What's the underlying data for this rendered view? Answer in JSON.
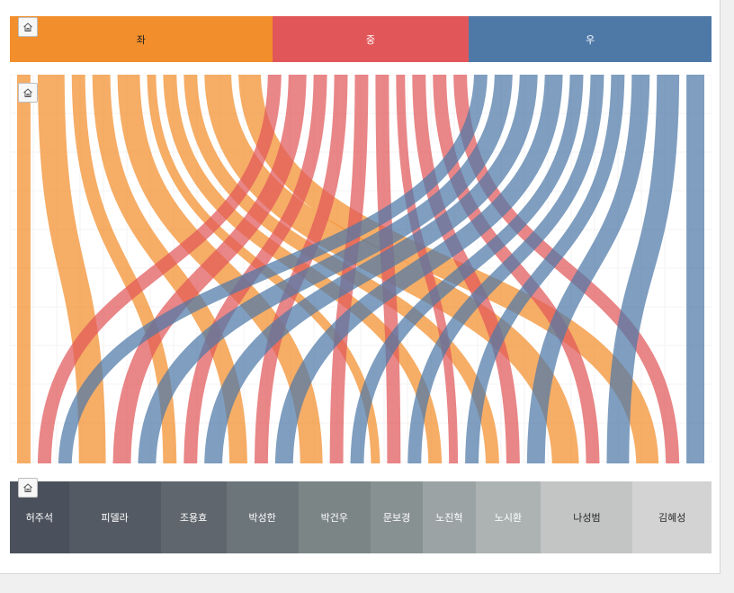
{
  "chart_data": {
    "type": "sankey",
    "title": "",
    "top_groups": [
      {
        "label": "좌",
        "color": "#f28e2b"
      },
      {
        "label": "중",
        "color": "#e15759"
      },
      {
        "label": "우",
        "color": "#4e79a7"
      }
    ],
    "bottom_nodes": [
      {
        "label": "허주석",
        "color": "#4b515c"
      },
      {
        "label": "피델라",
        "color": "#545a63"
      },
      {
        "label": "조용효",
        "color": "#5f666d"
      },
      {
        "label": "박성한",
        "color": "#6c757a"
      },
      {
        "label": "박건우",
        "color": "#7b8586"
      },
      {
        "label": "문보경",
        "color": "#889192"
      },
      {
        "label": "노진혁",
        "color": "#9ba3a4"
      },
      {
        "label": "노시환",
        "color": "#adb3b3"
      },
      {
        "label": "나성범",
        "color": "#c2c5c4"
      },
      {
        "label": "김혜성",
        "color": "#d3d3d3"
      }
    ],
    "flows": [
      {
        "source": "좌",
        "target": "허주석",
        "value": 3
      },
      {
        "source": "좌",
        "target": "피델라",
        "value": 6
      },
      {
        "source": "좌",
        "target": "조용효",
        "value": 3
      },
      {
        "source": "좌",
        "target": "박성한",
        "value": 4
      },
      {
        "source": "좌",
        "target": "박건우",
        "value": 5
      },
      {
        "source": "좌",
        "target": "문보경",
        "value": 2
      },
      {
        "source": "좌",
        "target": "노진혁",
        "value": 3
      },
      {
        "source": "좌",
        "target": "노시환",
        "value": 3
      },
      {
        "source": "좌",
        "target": "나성범",
        "value": 6
      },
      {
        "source": "좌",
        "target": "김혜성",
        "value": 5
      },
      {
        "source": "중",
        "target": "허주석",
        "value": 3
      },
      {
        "source": "중",
        "target": "피델라",
        "value": 4
      },
      {
        "source": "중",
        "target": "조용효",
        "value": 3
      },
      {
        "source": "중",
        "target": "박성한",
        "value": 3
      },
      {
        "source": "중",
        "target": "박건우",
        "value": 3
      },
      {
        "source": "중",
        "target": "문보경",
        "value": 3
      },
      {
        "source": "중",
        "target": "노진혁",
        "value": 2
      },
      {
        "source": "중",
        "target": "노시환",
        "value": 3
      },
      {
        "source": "중",
        "target": "나성범",
        "value": 3
      },
      {
        "source": "중",
        "target": "김혜성",
        "value": 3
      },
      {
        "source": "우",
        "target": "허주석",
        "value": 3
      },
      {
        "source": "우",
        "target": "피델라",
        "value": 4
      },
      {
        "source": "우",
        "target": "조용효",
        "value": 4
      },
      {
        "source": "우",
        "target": "박성한",
        "value": 4
      },
      {
        "source": "우",
        "target": "박건우",
        "value": 3
      },
      {
        "source": "우",
        "target": "문보경",
        "value": 3
      },
      {
        "source": "우",
        "target": "노진혁",
        "value": 3
      },
      {
        "source": "우",
        "target": "노시환",
        "value": 4
      },
      {
        "source": "우",
        "target": "나성범",
        "value": 5
      },
      {
        "source": "우",
        "target": "김혜성",
        "value": 4
      }
    ]
  }
}
